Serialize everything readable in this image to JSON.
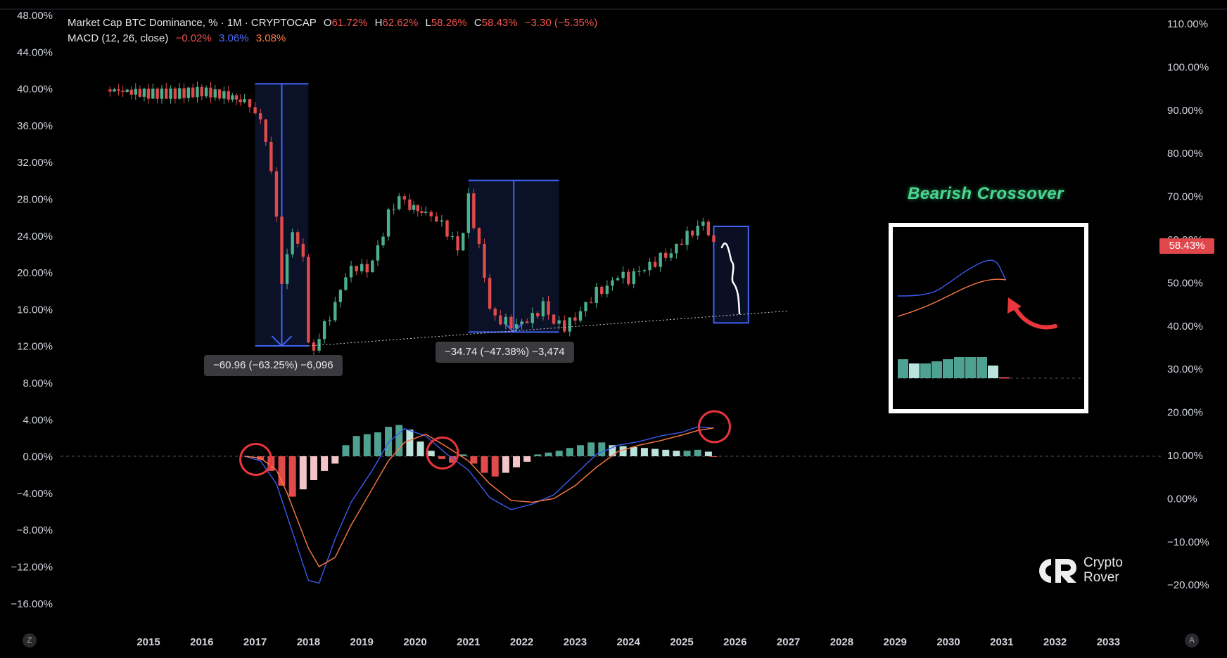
{
  "legend": {
    "title": "Market Cap BTC Dominance, % · 1M · CRYPTOCAP",
    "o_label": "O",
    "o_value": "61.72%",
    "h_label": "H",
    "h_value": "62.62%",
    "l_label": "L",
    "l_value": "58.26%",
    "c_label": "C",
    "c_value": "58.43%",
    "change": "−3.30 (−5.35%)",
    "macd_title": "MACD (12, 26, close)",
    "macd_hist": "−0.02%",
    "macd_line": "3.06%",
    "macd_signal": "3.08%"
  },
  "price_tag": "58.43%",
  "measure_1": "−60.96 (−63.25%) −6,096",
  "measure_2": "−34.74 (−47.38%) −3,474",
  "annotation": "Bearish Crossover",
  "logo": {
    "line1": "Crypto",
    "line2": "Rover"
  },
  "buttons": {
    "z": "Z",
    "a": "A"
  },
  "colors": {
    "up": "#4caf8e",
    "down": "#e04a4a",
    "macd": "#3c5bf0",
    "signal": "#ff7b45",
    "box": "#3f63f0",
    "hist_up": "#4fa292",
    "hist_up_light": "#b9e3dc",
    "hist_down": "#e04a4a",
    "hist_down_light": "#f4c5c8"
  },
  "chart_data": {
    "type": "candlestick",
    "x_ticks": [
      "2015",
      "2016",
      "2017",
      "2018",
      "2019",
      "2020",
      "2021",
      "2022",
      "2023",
      "2024",
      "2025",
      "2026",
      "2027",
      "2028",
      "2029",
      "2030",
      "2031",
      "2032",
      "2033"
    ],
    "left_axis_ticks": [
      "48.00%",
      "44.00%",
      "40.00%",
      "36.00%",
      "32.00%",
      "28.00%",
      "24.00%",
      "20.00%",
      "16.00%",
      "12.00%",
      "8.00%",
      "4.00%",
      "0.00%",
      "−4.00%",
      "−8.00%",
      "−12.00%",
      "−16.00%"
    ],
    "right_axis_ticks": [
      "110.00%",
      "100.00%",
      "90.00%",
      "80.00%",
      "70.00%",
      "60.00%",
      "50.00%",
      "40.00%",
      "30.00%",
      "20.00%",
      "10.00%",
      "0.00%",
      "−10.00%",
      "−20.00%"
    ],
    "price_series": [
      {
        "t": 2014.2,
        "v": 95
      },
      {
        "t": 2015.0,
        "v": 94
      },
      {
        "t": 2015.5,
        "v": 94
      },
      {
        "t": 2016.0,
        "v": 94.5
      },
      {
        "t": 2016.5,
        "v": 93.5
      },
      {
        "t": 2016.8,
        "v": 92
      },
      {
        "t": 2017.0,
        "v": 90
      },
      {
        "t": 2017.2,
        "v": 84
      },
      {
        "t": 2017.4,
        "v": 66
      },
      {
        "t": 2017.5,
        "v": 50
      },
      {
        "t": 2017.6,
        "v": 56
      },
      {
        "t": 2017.7,
        "v": 63
      },
      {
        "t": 2017.8,
        "v": 58
      },
      {
        "t": 2017.9,
        "v": 57
      },
      {
        "t": 2018.0,
        "v": 36
      },
      {
        "t": 2018.1,
        "v": 34
      },
      {
        "t": 2018.2,
        "v": 38
      },
      {
        "t": 2018.3,
        "v": 40
      },
      {
        "t": 2018.5,
        "v": 45
      },
      {
        "t": 2018.7,
        "v": 52
      },
      {
        "t": 2018.9,
        "v": 54
      },
      {
        "t": 2019.1,
        "v": 53
      },
      {
        "t": 2019.3,
        "v": 58
      },
      {
        "t": 2019.5,
        "v": 66
      },
      {
        "t": 2019.7,
        "v": 70
      },
      {
        "t": 2019.9,
        "v": 68
      },
      {
        "t": 2020.2,
        "v": 66
      },
      {
        "t": 2020.4,
        "v": 65
      },
      {
        "t": 2020.6,
        "v": 62
      },
      {
        "t": 2020.8,
        "v": 58
      },
      {
        "t": 2020.9,
        "v": 62
      },
      {
        "t": 2021.0,
        "v": 70
      },
      {
        "t": 2021.1,
        "v": 64
      },
      {
        "t": 2021.3,
        "v": 52
      },
      {
        "t": 2021.4,
        "v": 44
      },
      {
        "t": 2021.5,
        "v": 42
      },
      {
        "t": 2021.7,
        "v": 41
      },
      {
        "t": 2021.9,
        "v": 40
      },
      {
        "t": 2022.0,
        "v": 41
      },
      {
        "t": 2022.2,
        "v": 42
      },
      {
        "t": 2022.4,
        "v": 45
      },
      {
        "t": 2022.6,
        "v": 41
      },
      {
        "t": 2022.8,
        "v": 40
      },
      {
        "t": 2023.0,
        "v": 42
      },
      {
        "t": 2023.2,
        "v": 45
      },
      {
        "t": 2023.4,
        "v": 48
      },
      {
        "t": 2023.6,
        "v": 49
      },
      {
        "t": 2023.8,
        "v": 52
      },
      {
        "t": 2024.0,
        "v": 51
      },
      {
        "t": 2024.2,
        "v": 53
      },
      {
        "t": 2024.4,
        "v": 54
      },
      {
        "t": 2024.6,
        "v": 56
      },
      {
        "t": 2024.8,
        "v": 57
      },
      {
        "t": 2025.0,
        "v": 60
      },
      {
        "t": 2025.2,
        "v": 62
      },
      {
        "t": 2025.4,
        "v": 64
      },
      {
        "t": 2025.5,
        "v": 62
      },
      {
        "t": 2025.6,
        "v": 58.43
      }
    ],
    "macd_series": [
      {
        "t": 2016.8,
        "macd": 0,
        "signal": 0
      },
      {
        "t": 2017.1,
        "macd": -0.5,
        "signal": -0.2
      },
      {
        "t": 2017.4,
        "macd": -3,
        "signal": -1.5
      },
      {
        "t": 2017.6,
        "macd": -6.5,
        "signal": -4
      },
      {
        "t": 2017.8,
        "macd": -10,
        "signal": -7
      },
      {
        "t": 2018.0,
        "macd": -13.5,
        "signal": -10
      },
      {
        "t": 2018.2,
        "macd": -13.8,
        "signal": -12
      },
      {
        "t": 2018.5,
        "macd": -9,
        "signal": -11
      },
      {
        "t": 2018.8,
        "macd": -5,
        "signal": -7.5
      },
      {
        "t": 2019.2,
        "macd": -1.5,
        "signal": -3.5
      },
      {
        "t": 2019.5,
        "macd": 1.5,
        "signal": -0.5
      },
      {
        "t": 2019.8,
        "macd": 3,
        "signal": 1.5
      },
      {
        "t": 2020.2,
        "macd": 2.2,
        "signal": 2.4
      },
      {
        "t": 2020.6,
        "macd": 0.2,
        "signal": 1.0
      },
      {
        "t": 2021.0,
        "macd": -1.5,
        "signal": -0.5
      },
      {
        "t": 2021.4,
        "macd": -4.5,
        "signal": -3.0
      },
      {
        "t": 2021.8,
        "macd": -5.8,
        "signal": -4.8
      },
      {
        "t": 2022.2,
        "macd": -5.2,
        "signal": -5.0
      },
      {
        "t": 2022.6,
        "macd": -4.2,
        "signal": -4.6
      },
      {
        "t": 2023.0,
        "macd": -2,
        "signal": -3.2
      },
      {
        "t": 2023.4,
        "macd": 0.2,
        "signal": -1.2
      },
      {
        "t": 2023.8,
        "macd": 1.2,
        "signal": 0.5
      },
      {
        "t": 2024.2,
        "macd": 1.6,
        "signal": 1.2
      },
      {
        "t": 2024.6,
        "macd": 2.2,
        "signal": 1.7
      },
      {
        "t": 2025.0,
        "macd": 2.6,
        "signal": 2.3
      },
      {
        "t": 2025.3,
        "macd": 3.2,
        "signal": 2.8
      },
      {
        "t": 2025.6,
        "macd": 3.06,
        "signal": 3.08
      }
    ],
    "macd_hist": [
      {
        "t": 2017.1,
        "v": -0.4
      },
      {
        "t": 2017.3,
        "v": -1.6
      },
      {
        "t": 2017.5,
        "v": -3.2
      },
      {
        "t": 2017.7,
        "v": -4.4
      },
      {
        "t": 2017.9,
        "v": -3.6
      },
      {
        "t": 2018.1,
        "v": -2.6
      },
      {
        "t": 2018.3,
        "v": -1.6
      },
      {
        "t": 2018.5,
        "v": -0.8
      },
      {
        "t": 2018.7,
        "v": 1.2
      },
      {
        "t": 2018.9,
        "v": 2.2
      },
      {
        "t": 2019.1,
        "v": 2.4
      },
      {
        "t": 2019.3,
        "v": 2.6
      },
      {
        "t": 2019.5,
        "v": 3.2
      },
      {
        "t": 2019.7,
        "v": 3.4
      },
      {
        "t": 2019.9,
        "v": 2.9
      },
      {
        "t": 2020.1,
        "v": 1.6
      },
      {
        "t": 2020.3,
        "v": 0.6
      },
      {
        "t": 2020.5,
        "v": -0.3
      },
      {
        "t": 2020.7,
        "v": -0.7
      },
      {
        "t": 2020.9,
        "v": 0.2
      },
      {
        "t": 2021.1,
        "v": -0.8
      },
      {
        "t": 2021.3,
        "v": -1.8
      },
      {
        "t": 2021.5,
        "v": -2.2
      },
      {
        "t": 2021.7,
        "v": -1.8
      },
      {
        "t": 2021.9,
        "v": -1.2
      },
      {
        "t": 2022.1,
        "v": -0.6
      },
      {
        "t": 2022.3,
        "v": 0.2
      },
      {
        "t": 2022.5,
        "v": 0.4
      },
      {
        "t": 2022.7,
        "v": 0.6
      },
      {
        "t": 2022.9,
        "v": 0.9
      },
      {
        "t": 2023.1,
        "v": 1.2
      },
      {
        "t": 2023.3,
        "v": 1.5
      },
      {
        "t": 2023.5,
        "v": 1.5
      },
      {
        "t": 2023.7,
        "v": 1.2
      },
      {
        "t": 2023.9,
        "v": 1.1
      },
      {
        "t": 2024.1,
        "v": 1.0
      },
      {
        "t": 2024.3,
        "v": 0.9
      },
      {
        "t": 2024.5,
        "v": 0.8
      },
      {
        "t": 2024.7,
        "v": 0.7
      },
      {
        "t": 2024.9,
        "v": 0.6
      },
      {
        "t": 2025.1,
        "v": 0.6
      },
      {
        "t": 2025.3,
        "v": 0.7
      },
      {
        "t": 2025.5,
        "v": 0.5
      },
      {
        "t": 2025.6,
        "v": -0.02
      }
    ],
    "measure_boxes": [
      {
        "from": 2017.0,
        "to": 2018.0,
        "top_pct": 40.5,
        "bottom_pct": 12.0
      },
      {
        "from": 2021.0,
        "to": 2022.7,
        "top_pct": 30.0,
        "bottom_pct": 13.5
      }
    ],
    "projection_box": {
      "from": 2025.6,
      "to": 2026.25,
      "top_pct": 25.0,
      "bottom_pct": 14.5
    },
    "trendline": [
      {
        "t": 2018.0,
        "pct": 12.0
      },
      {
        "t": 2027.0,
        "pct": 15.8
      }
    ],
    "crossover_circles": [
      2017.0,
      2020.5,
      2025.6
    ]
  }
}
